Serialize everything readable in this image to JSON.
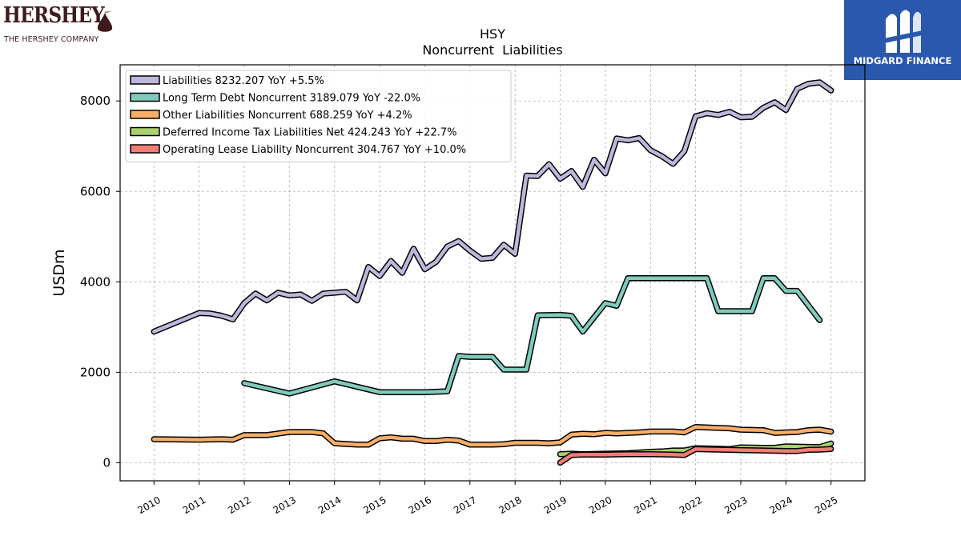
{
  "logos": {
    "left_brand": "HERSHEY",
    "left_tagline": "THE HERSHEY COMPANY",
    "right_brand": "MIDGARD FINANCE",
    "right_brand_color": "#2a58ad"
  },
  "chart_data": {
    "type": "line",
    "title": "HSY",
    "subtitle": "Noncurrent  Liabilities",
    "ylabel": "USDm",
    "xlabel": "",
    "ylim": [
      -400,
      8800
    ],
    "xlim": [
      2009.25,
      2025.75
    ],
    "yticks": [
      0,
      2000,
      4000,
      6000,
      8000
    ],
    "xticks": [
      "2010",
      "2011",
      "2012",
      "2013",
      "2014",
      "2015",
      "2016",
      "2017",
      "2018",
      "2019",
      "2020",
      "2021",
      "2022",
      "2023",
      "2024",
      "2025"
    ],
    "grid": true,
    "legend_position": "top-left",
    "series": [
      {
        "name": "Liabilities  8232.207 YoY +5.5%",
        "color": "#bcb8dc",
        "points": [
          [
            2010.0,
            2900
          ],
          [
            2011.0,
            3310
          ],
          [
            2011.25,
            3300
          ],
          [
            2011.5,
            3250
          ],
          [
            2011.75,
            3170
          ],
          [
            2012.0,
            3530
          ],
          [
            2012.25,
            3740
          ],
          [
            2012.5,
            3590
          ],
          [
            2012.75,
            3760
          ],
          [
            2013.0,
            3700
          ],
          [
            2013.25,
            3720
          ],
          [
            2013.5,
            3580
          ],
          [
            2013.75,
            3740
          ],
          [
            2014.0,
            3760
          ],
          [
            2014.25,
            3780
          ],
          [
            2014.5,
            3590
          ],
          [
            2014.75,
            4330
          ],
          [
            2015.0,
            4130
          ],
          [
            2015.25,
            4460
          ],
          [
            2015.5,
            4200
          ],
          [
            2015.75,
            4730
          ],
          [
            2016.0,
            4280
          ],
          [
            2016.25,
            4440
          ],
          [
            2016.5,
            4780
          ],
          [
            2016.75,
            4900
          ],
          [
            2017.0,
            4690
          ],
          [
            2017.25,
            4510
          ],
          [
            2017.5,
            4530
          ],
          [
            2017.75,
            4820
          ],
          [
            2018.0,
            4620
          ],
          [
            2018.25,
            6350
          ],
          [
            2018.5,
            6340
          ],
          [
            2018.75,
            6600
          ],
          [
            2019.0,
            6280
          ],
          [
            2019.25,
            6450
          ],
          [
            2019.5,
            6100
          ],
          [
            2019.75,
            6700
          ],
          [
            2020.0,
            6400
          ],
          [
            2020.25,
            7170
          ],
          [
            2020.5,
            7130
          ],
          [
            2020.75,
            7180
          ],
          [
            2021.0,
            6910
          ],
          [
            2021.25,
            6780
          ],
          [
            2021.5,
            6610
          ],
          [
            2021.75,
            6890
          ],
          [
            2022.0,
            7660
          ],
          [
            2022.25,
            7730
          ],
          [
            2022.5,
            7690
          ],
          [
            2022.75,
            7760
          ],
          [
            2023.0,
            7640
          ],
          [
            2023.25,
            7650
          ],
          [
            2023.5,
            7850
          ],
          [
            2023.75,
            7970
          ],
          [
            2024.0,
            7800
          ],
          [
            2024.25,
            8270
          ],
          [
            2024.5,
            8380
          ],
          [
            2024.75,
            8410
          ],
          [
            2025.0,
            8232
          ]
        ]
      },
      {
        "name": "Long Term Debt Noncurrent  3189.079 YoY -22.0%",
        "color": "#7fcbbc",
        "points": [
          [
            2012.0,
            1760
          ],
          [
            2013.0,
            1530
          ],
          [
            2014.0,
            1800
          ],
          [
            2015.0,
            1560
          ],
          [
            2015.5,
            1560
          ],
          [
            2016.0,
            1560
          ],
          [
            2016.5,
            1580
          ],
          [
            2016.75,
            2360
          ],
          [
            2017.0,
            2340
          ],
          [
            2017.5,
            2340
          ],
          [
            2017.75,
            2060
          ],
          [
            2018.0,
            2060
          ],
          [
            2018.25,
            2060
          ],
          [
            2018.5,
            3260
          ],
          [
            2019.0,
            3270
          ],
          [
            2019.25,
            3250
          ],
          [
            2019.5,
            2900
          ],
          [
            2020.0,
            3530
          ],
          [
            2020.25,
            3470
          ],
          [
            2020.5,
            4080
          ],
          [
            2021.0,
            4080
          ],
          [
            2021.5,
            4080
          ],
          [
            2022.0,
            4080
          ],
          [
            2022.25,
            4080
          ],
          [
            2022.5,
            3350
          ],
          [
            2023.0,
            3350
          ],
          [
            2023.25,
            3350
          ],
          [
            2023.5,
            4080
          ],
          [
            2023.75,
            4080
          ],
          [
            2024.0,
            3800
          ],
          [
            2024.25,
            3800
          ],
          [
            2024.75,
            3150
          ]
        ]
      },
      {
        "name": "Other Liabilities Noncurrent  688.259 YoY +4.2%",
        "color": "#f7ae68",
        "points": [
          [
            2010.0,
            520
          ],
          [
            2011.0,
            510
          ],
          [
            2011.5,
            520
          ],
          [
            2011.75,
            510
          ],
          [
            2012.0,
            610
          ],
          [
            2012.5,
            610
          ],
          [
            2013.0,
            680
          ],
          [
            2013.5,
            680
          ],
          [
            2013.75,
            650
          ],
          [
            2014.0,
            430
          ],
          [
            2014.5,
            400
          ],
          [
            2014.75,
            400
          ],
          [
            2015.0,
            540
          ],
          [
            2015.25,
            560
          ],
          [
            2015.5,
            530
          ],
          [
            2015.75,
            530
          ],
          [
            2016.0,
            480
          ],
          [
            2016.25,
            480
          ],
          [
            2016.5,
            510
          ],
          [
            2016.75,
            490
          ],
          [
            2017.0,
            400
          ],
          [
            2017.5,
            400
          ],
          [
            2017.75,
            410
          ],
          [
            2018.0,
            440
          ],
          [
            2018.5,
            440
          ],
          [
            2018.75,
            430
          ],
          [
            2019.0,
            450
          ],
          [
            2019.25,
            620
          ],
          [
            2019.5,
            640
          ],
          [
            2019.75,
            630
          ],
          [
            2020.0,
            660
          ],
          [
            2020.25,
            650
          ],
          [
            2020.5,
            660
          ],
          [
            2020.75,
            670
          ],
          [
            2021.0,
            690
          ],
          [
            2021.5,
            690
          ],
          [
            2021.75,
            670
          ],
          [
            2022.0,
            790
          ],
          [
            2022.5,
            770
          ],
          [
            2022.75,
            760
          ],
          [
            2023.0,
            730
          ],
          [
            2023.5,
            720
          ],
          [
            2023.75,
            660
          ],
          [
            2024.0,
            670
          ],
          [
            2024.25,
            680
          ],
          [
            2024.5,
            720
          ],
          [
            2024.75,
            730
          ],
          [
            2025.0,
            688
          ]
        ]
      },
      {
        "name": "Deferred Income Tax Liabilities Net  424.243 YoY +22.7%",
        "color": "#a9d16e",
        "points": [
          [
            2019.0,
            190
          ],
          [
            2019.25,
            200
          ],
          [
            2019.5,
            190
          ],
          [
            2020.0,
            200
          ],
          [
            2020.5,
            210
          ],
          [
            2021.0,
            240
          ],
          [
            2021.25,
            250
          ],
          [
            2021.5,
            270
          ],
          [
            2021.75,
            270
          ],
          [
            2022.0,
            320
          ],
          [
            2022.5,
            310
          ],
          [
            2022.75,
            300
          ],
          [
            2023.0,
            340
          ],
          [
            2023.5,
            330
          ],
          [
            2023.75,
            330
          ],
          [
            2024.0,
            360
          ],
          [
            2024.5,
            350
          ],
          [
            2024.75,
            345
          ],
          [
            2025.0,
            424
          ]
        ]
      },
      {
        "name": "Operating Lease Liability Noncurrent  304.767 YoY +10.0%",
        "color": "#f27c73",
        "points": [
          [
            2019.0,
            0
          ],
          [
            2019.25,
            170
          ],
          [
            2019.5,
            180
          ],
          [
            2020.0,
            180
          ],
          [
            2020.5,
            190
          ],
          [
            2021.0,
            190
          ],
          [
            2021.5,
            180
          ],
          [
            2021.75,
            170
          ],
          [
            2022.0,
            300
          ],
          [
            2022.5,
            290
          ],
          [
            2023.0,
            280
          ],
          [
            2023.5,
            270
          ],
          [
            2024.0,
            260
          ],
          [
            2024.25,
            260
          ],
          [
            2024.5,
            285
          ],
          [
            2024.75,
            290
          ],
          [
            2025.0,
            305
          ]
        ]
      }
    ]
  }
}
